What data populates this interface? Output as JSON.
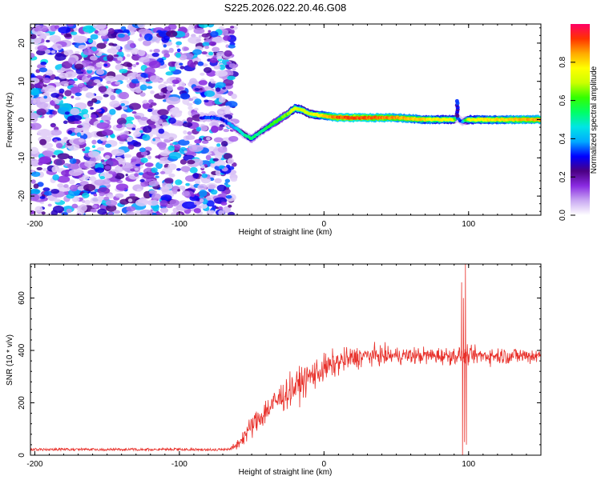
{
  "page_title": "S225.2026.022.20.46.G08",
  "chart_data": [
    {
      "type": "heatmap",
      "title": "S225.2026.022.20.46.G08",
      "xlabel": "Height of straight line (km)",
      "ylabel": "Frequency (Hz)",
      "xlim": [
        -203,
        150
      ],
      "ylim": [
        -25,
        25
      ],
      "xticks": [
        -200,
        -100,
        0,
        100
      ],
      "yticks": [
        -20,
        -10,
        0,
        10,
        20
      ],
      "colorbar": {
        "label": "Normalized spectral amplitude",
        "range": [
          0,
          1
        ],
        "ticks": [
          "0.0",
          "0.2",
          "0.4",
          "0.6",
          "0.8"
        ],
        "tick_values": [
          0,
          0.2,
          0.4,
          0.6,
          0.8
        ],
        "colors": [
          "#ffffff",
          "#c9a8f2",
          "#8a2be2",
          "#4b0082",
          "#0000ff",
          "#00aaff",
          "#00e5e5",
          "#00ff66",
          "#33ff00",
          "#ccff00",
          "#ffff00",
          "#ffaa00",
          "#ff3300",
          "#ff0066"
        ]
      },
      "noise_region_x": [
        -203,
        -62
      ],
      "ridge": {
        "x": [
          -85,
          -75,
          -70,
          -62,
          -55,
          -50,
          -45,
          -35,
          -25,
          -20,
          -15,
          -10,
          0,
          10,
          30,
          50,
          70,
          90,
          92,
          95,
          100,
          120,
          150
        ],
        "freq": [
          0.5,
          0.5,
          0.0,
          -2.0,
          -4.0,
          -5.0,
          -3.5,
          -1.0,
          1.5,
          3.0,
          2.5,
          1.5,
          1.0,
          0.5,
          0.5,
          0.5,
          0.0,
          0.0,
          0.5,
          -0.5,
          0.0,
          0.0,
          0.0
        ],
        "amp": [
          0.3,
          0.35,
          0.3,
          0.4,
          0.5,
          0.55,
          0.5,
          0.6,
          0.65,
          0.75,
          0.7,
          0.7,
          0.8,
          0.9,
          0.9,
          0.85,
          0.8,
          0.75,
          0.35,
          0.3,
          0.75,
          0.8,
          0.85
        ]
      }
    },
    {
      "type": "line",
      "xlabel": "Height of straight line (km)",
      "ylabel": "SNR (10 * v/v)",
      "xlim": [
        -203,
        150
      ],
      "ylim": [
        0,
        730
      ],
      "xticks": [
        -200,
        -100,
        0,
        100
      ],
      "yticks": [
        0,
        200,
        400,
        600
      ],
      "color": "#e8302a",
      "series": [
        {
          "name": "SNR",
          "x": [
            -203,
            -150,
            -100,
            -65,
            -60,
            -50,
            -40,
            -30,
            -20,
            -10,
            0,
            10,
            20,
            30,
            50,
            70,
            90,
            95,
            96,
            97,
            98,
            100,
            120,
            150
          ],
          "mean": [
            20,
            20,
            20,
            20,
            40,
            110,
            170,
            220,
            260,
            300,
            330,
            355,
            370,
            380,
            380,
            380,
            380,
            380,
            380,
            380,
            380,
            380,
            380,
            380
          ],
          "noise": [
            6,
            6,
            6,
            6,
            20,
            40,
            50,
            55,
            55,
            55,
            50,
            45,
            40,
            35,
            30,
            30,
            30,
            30,
            30,
            30,
            30,
            30,
            30,
            30
          ]
        }
      ],
      "spikes": [
        {
          "x": 95.2,
          "y": 660
        },
        {
          "x": 95.8,
          "y": 0
        },
        {
          "x": 96.4,
          "y": 600
        },
        {
          "x": 97.2,
          "y": 50
        },
        {
          "x": 97.8,
          "y": 730
        },
        {
          "x": 98.5,
          "y": 40
        }
      ]
    }
  ]
}
